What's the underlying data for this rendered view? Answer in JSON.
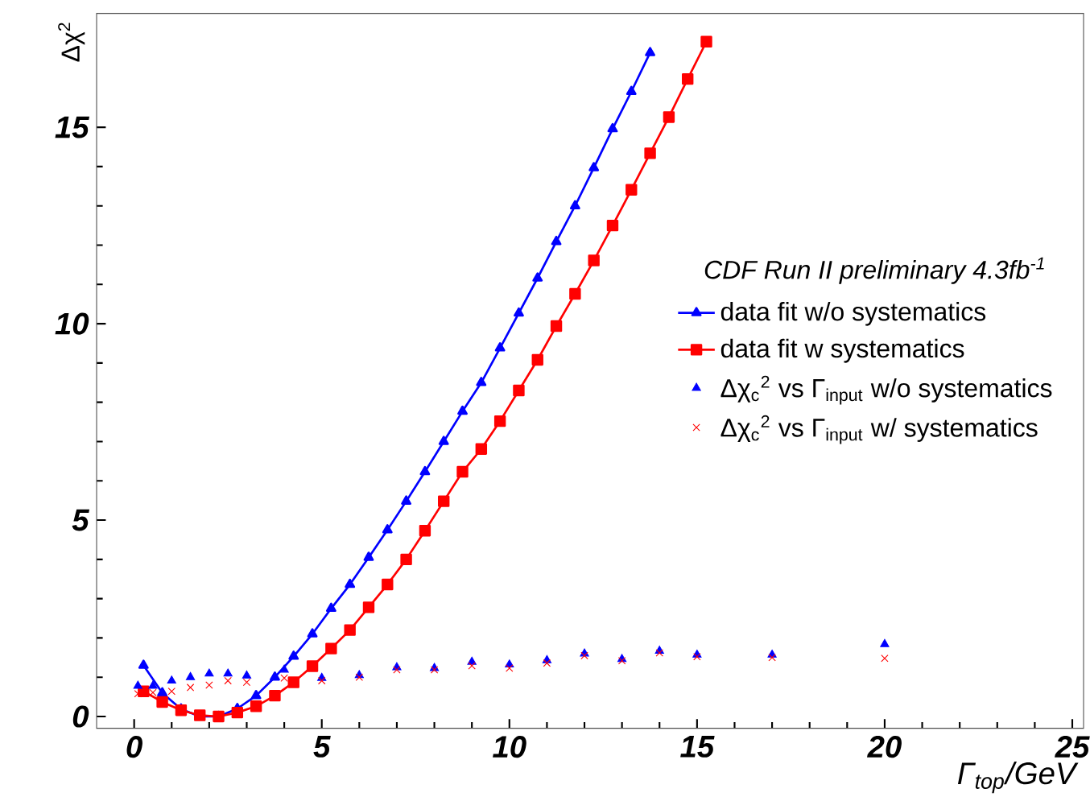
{
  "chart_data": {
    "type": "line",
    "xlabel": "Γ$_{top}$/GeV",
    "ylabel": "Δχ$^{2}$",
    "legend_title": "CDF Run II preliminary 4.3fb$^{-1}$",
    "xlim": [
      -1,
      25.3
    ],
    "ylim": [
      -0.3,
      17.9
    ],
    "xticks": [
      0,
      5,
      10,
      15,
      20,
      25
    ],
    "yticks": [
      0,
      5,
      10,
      15
    ],
    "grid": false,
    "legend": "right",
    "series": [
      {
        "name": "data fit w/o systematics",
        "type": "line",
        "marker": "triangle",
        "color": "#0000ff",
        "x": [
          0.25,
          0.75,
          1.25,
          1.75,
          2.25,
          2.75,
          3.25,
          3.75,
          4.25,
          4.75,
          5.25,
          5.75,
          6.25,
          6.75,
          7.25,
          7.75,
          8.25,
          8.75,
          9.25,
          9.75,
          10.25,
          10.75,
          11.25,
          11.75,
          12.25,
          12.75,
          13.25,
          13.75
        ],
        "values": [
          1.3,
          0.6,
          0.19,
          0.0,
          0.0,
          0.2,
          0.53,
          1.0,
          1.53,
          2.1,
          2.75,
          3.36,
          4.05,
          4.75,
          5.48,
          6.23,
          7.0,
          7.77,
          8.5,
          9.38,
          10.27,
          11.16,
          12.09,
          13.0,
          13.97,
          14.96,
          15.91,
          16.9
        ]
      },
      {
        "name": "data fit w systematics",
        "type": "line",
        "marker": "square",
        "color": "#ff0000",
        "x": [
          0.25,
          0.75,
          1.25,
          1.75,
          2.25,
          2.75,
          3.25,
          3.75,
          4.25,
          4.75,
          5.25,
          5.75,
          6.25,
          6.75,
          7.25,
          7.75,
          8.25,
          8.75,
          9.25,
          9.75,
          10.25,
          10.75,
          11.25,
          11.75,
          12.25,
          12.75,
          13.25,
          13.75,
          14.25,
          14.75,
          15.25
        ],
        "values": [
          0.64,
          0.37,
          0.16,
          0.03,
          0.0,
          0.1,
          0.26,
          0.53,
          0.87,
          1.28,
          1.73,
          2.2,
          2.78,
          3.36,
          4.0,
          4.73,
          5.48,
          6.23,
          6.81,
          7.52,
          8.3,
          9.08,
          9.94,
          10.76,
          11.61,
          12.5,
          13.41,
          14.34,
          15.26,
          16.23,
          17.18
        ]
      },
      {
        "name": "Δχ$_{c}$$^{2}$ vs Γ$_{input}$ w/o systematics",
        "type": "scatter",
        "marker": "triangle",
        "color": "#0000ff",
        "x": [
          0.1,
          0.5,
          1,
          1.5,
          2,
          2.5,
          3,
          4,
          5,
          6,
          7,
          8,
          9,
          10,
          11,
          12,
          13,
          14,
          15,
          17,
          20
        ],
        "values": [
          0.78,
          0.78,
          0.91,
          1.0,
          1.09,
          1.09,
          1.04,
          1.19,
          0.98,
          1.05,
          1.25,
          1.23,
          1.39,
          1.32,
          1.43,
          1.6,
          1.46,
          1.67,
          1.57,
          1.57,
          1.84
        ]
      },
      {
        "name": "Δχ$_{c}$$^{2}$ vs Γ$_{input}$ w/ systematics",
        "type": "scatter",
        "marker": "cross",
        "color": "#ff0000",
        "x": [
          0.1,
          0.5,
          1,
          1.5,
          2,
          2.5,
          3,
          4,
          5,
          6,
          7,
          8,
          9,
          10,
          11,
          12,
          13,
          14,
          15,
          17,
          20
        ],
        "values": [
          0.58,
          0.61,
          0.64,
          0.74,
          0.8,
          0.91,
          0.87,
          0.98,
          0.91,
          1.0,
          1.19,
          1.19,
          1.29,
          1.23,
          1.36,
          1.55,
          1.42,
          1.62,
          1.52,
          1.5,
          1.48
        ]
      }
    ]
  }
}
